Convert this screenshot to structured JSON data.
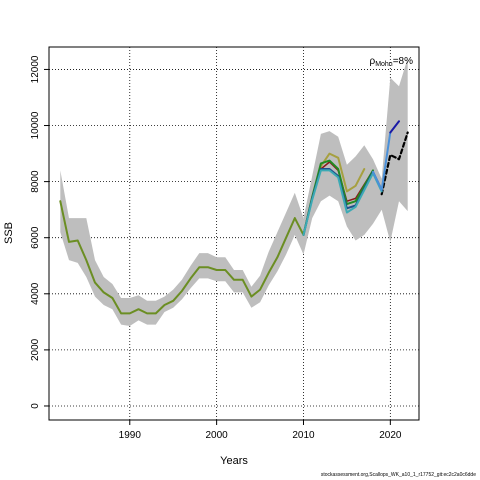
{
  "chart_data": {
    "type": "line",
    "title": "",
    "xlabel": "Years",
    "ylabel": "SSB",
    "xlim": [
      1980.7,
      2023.3
    ],
    "ylim": [
      -500,
      12800
    ],
    "xticks": [
      1990,
      2000,
      2010,
      2020
    ],
    "yticks": [
      0,
      2000,
      4000,
      6000,
      8000,
      10000,
      12000
    ],
    "grid": true,
    "annotation": {
      "rho_symbol": "ρ",
      "rho_subscript": "Mohn",
      "rho_value": "=8%"
    },
    "footer": "stockassessment.org,Scallops_WK_a10_1_r17752_git:ec2c2a0c6dde",
    "confidence_band": {
      "color": "#bebebe",
      "x": [
        1982,
        1983,
        1984,
        1985,
        1986,
        1987,
        1988,
        1989,
        1990,
        1991,
        1992,
        1993,
        1994,
        1995,
        1996,
        1997,
        1998,
        1999,
        2000,
        2001,
        2002,
        2003,
        2004,
        2005,
        2006,
        2007,
        2008,
        2009,
        2010,
        2011,
        2012,
        2013,
        2014,
        2015,
        2016,
        2017,
        2018,
        2019,
        2020,
        2021,
        2022
      ],
      "lower": [
        6200,
        5200,
        5100,
        4600,
        3900,
        3600,
        3450,
        2900,
        2850,
        3050,
        2900,
        2900,
        3350,
        3500,
        3800,
        4200,
        4550,
        4550,
        4450,
        4450,
        4050,
        4050,
        3500,
        3700,
        4300,
        4800,
        5400,
        6100,
        5400,
        6700,
        7300,
        7500,
        7300,
        6400,
        5900,
        6100,
        6500,
        7000,
        5850,
        7300,
        6950
      ],
      "upper": [
        8400,
        6700,
        6700,
        6700,
        5200,
        4600,
        4350,
        3850,
        3850,
        3950,
        3750,
        3750,
        3900,
        4150,
        4500,
        5000,
        5450,
        5450,
        5300,
        5300,
        4850,
        4850,
        4250,
        4650,
        5500,
        6200,
        6900,
        7600,
        6700,
        8200,
        9700,
        9800,
        9600,
        8600,
        8900,
        9300,
        8800,
        8100,
        11700,
        11400,
        12400
      ]
    },
    "series": [
      {
        "color": "#000000",
        "width": 2.2,
        "dash": "4,3",
        "x": [
          2019,
          2020,
          2021,
          2022
        ],
        "values": [
          7550,
          8950,
          8800,
          9750
        ]
      },
      {
        "color": "#6b8e23",
        "width": 2.0,
        "x": [
          1982,
          1983,
          1984,
          1985,
          1986,
          1987,
          1988,
          1989,
          1990,
          1991,
          1992,
          1993,
          1994,
          1995,
          1996,
          1997,
          1998,
          1999,
          2000,
          2001,
          2002,
          2003,
          2004,
          2005,
          2006,
          2007,
          2008,
          2009,
          2010
        ],
        "values": [
          7300,
          5850,
          5900,
          5200,
          4400,
          4050,
          3850,
          3300,
          3300,
          3450,
          3300,
          3300,
          3600,
          3750,
          4100,
          4550,
          4950,
          4950,
          4850,
          4850,
          4500,
          4500,
          3900,
          4150,
          4750,
          5300,
          6000,
          6700,
          6100
        ]
      },
      {
        "color": "#a6a040",
        "width": 2.0,
        "x": [
          2010,
          2011,
          2012,
          2013,
          2014,
          2015,
          2016,
          2017
        ],
        "values": [
          6100,
          7450,
          8550,
          9000,
          8850,
          7650,
          7850,
          8450
        ]
      },
      {
        "color": "#8b1a1a",
        "width": 1.5,
        "x": [
          2010,
          2011,
          2012,
          2013,
          2014,
          2015,
          2016,
          2017,
          2018
        ],
        "values": [
          6100,
          7400,
          8450,
          8700,
          8400,
          7300,
          7400,
          7900,
          8400
        ]
      },
      {
        "color": "#228b22",
        "width": 2.0,
        "x": [
          2010,
          2011,
          2012,
          2013,
          2014,
          2015,
          2016,
          2017,
          2018
        ],
        "values": [
          6100,
          7450,
          8650,
          8750,
          8450,
          7200,
          7300,
          7850,
          8400
        ]
      },
      {
        "color": "#20508b",
        "width": 2.0,
        "x": [
          2010,
          2011,
          2012,
          2013,
          2014,
          2015,
          2016,
          2017,
          2018,
          2019
        ],
        "values": [
          6100,
          7400,
          8450,
          8450,
          8200,
          7050,
          7150,
          7750,
          8350,
          7700
        ]
      },
      {
        "color": "#3caab4",
        "width": 2.0,
        "x": [
          2010,
          2011,
          2012,
          2013,
          2014,
          2015,
          2016,
          2017,
          2018,
          2019
        ],
        "values": [
          6100,
          7350,
          8400,
          8400,
          8150,
          6900,
          7100,
          7700,
          8300,
          7650
        ]
      },
      {
        "color": "#4a90d9",
        "width": 2.0,
        "x": [
          2018,
          2019,
          2020
        ],
        "values": [
          8350,
          7700,
          9750
        ]
      },
      {
        "color": "#1a1aa6",
        "width": 2.0,
        "x": [
          2020,
          2021
        ],
        "values": [
          9750,
          10150
        ]
      }
    ]
  }
}
